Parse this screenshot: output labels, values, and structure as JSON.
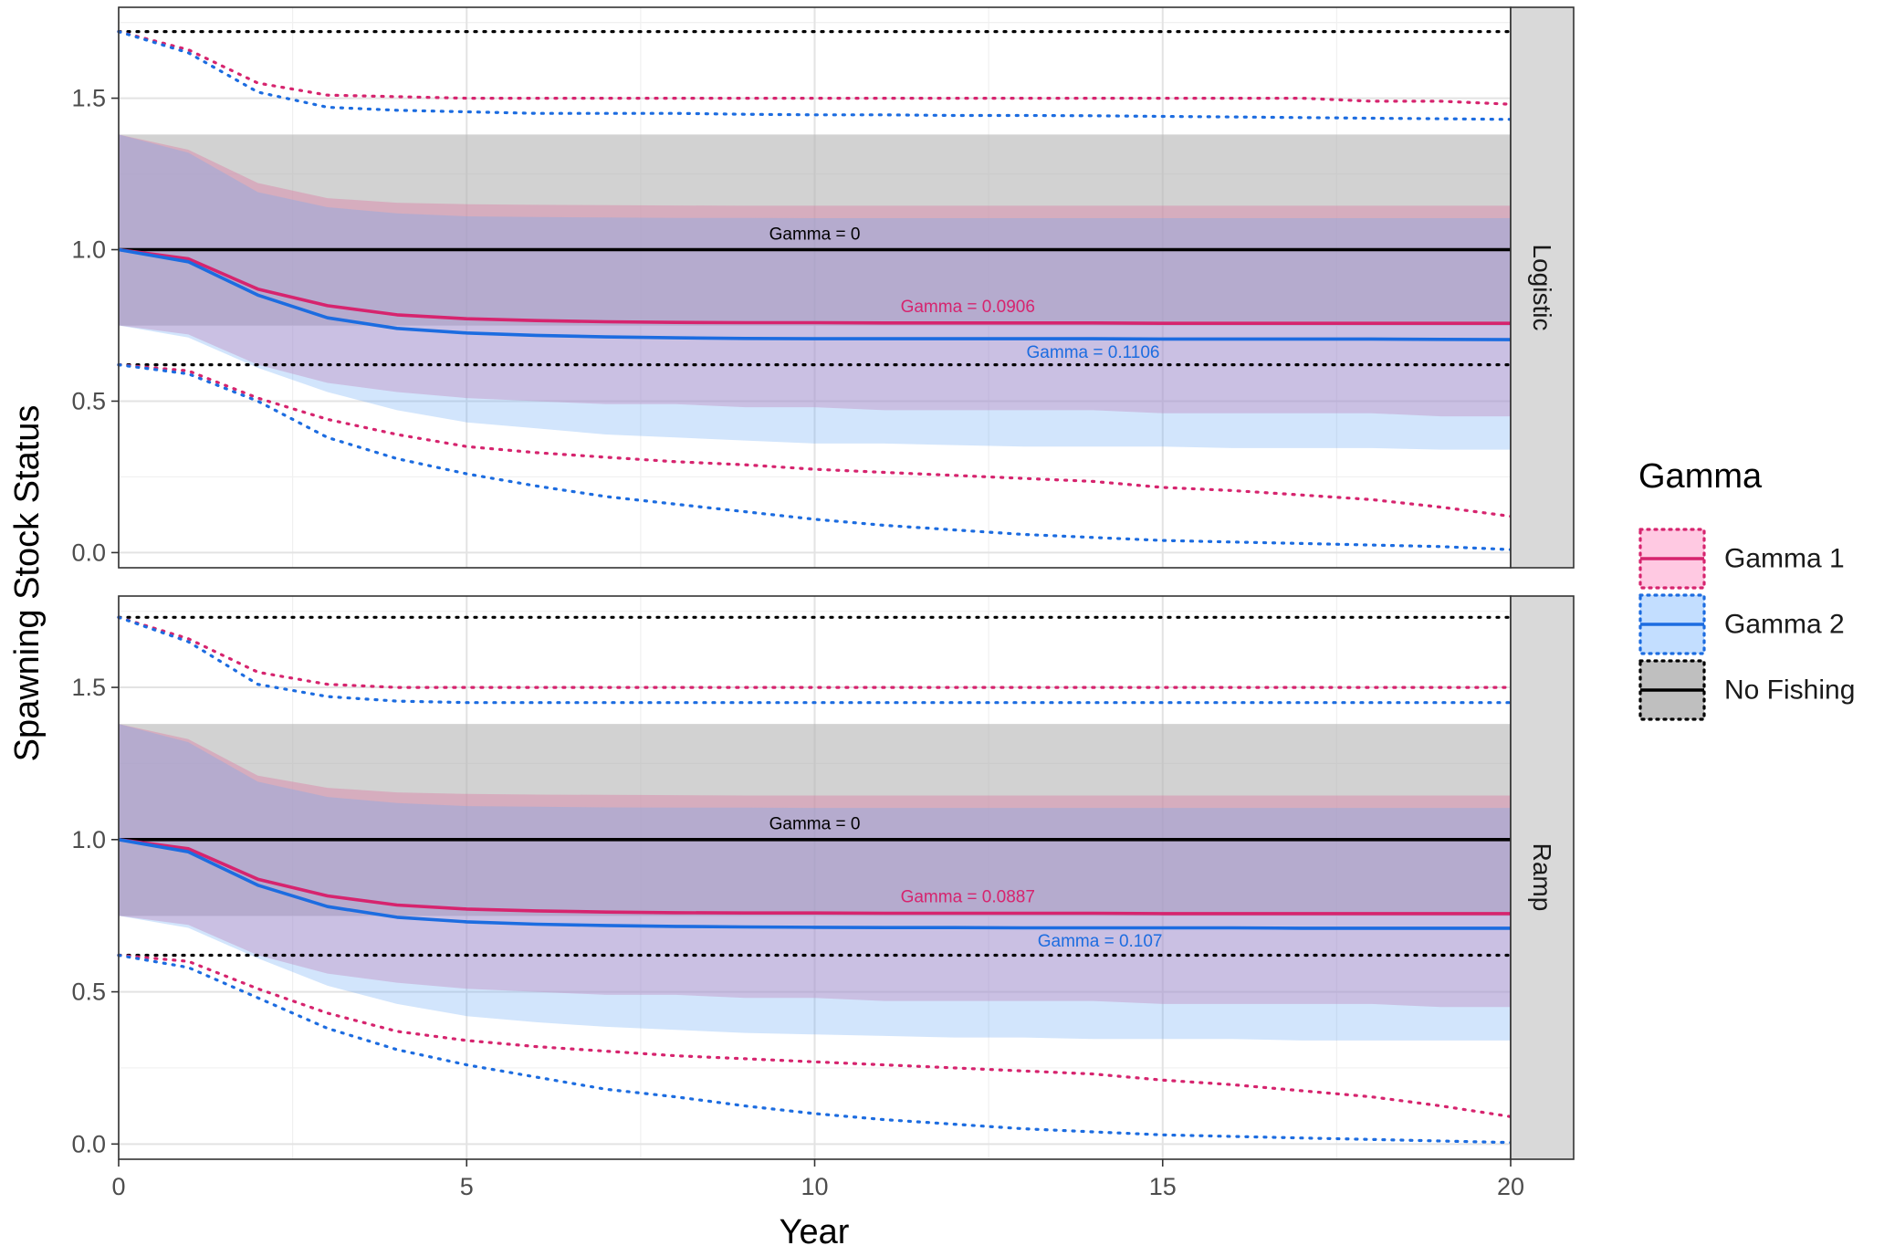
{
  "chart_data": {
    "type": "line",
    "xlabel": "Year",
    "ylabel": "Spawning Stock Status",
    "xlim": [
      0,
      20
    ],
    "ylim": [
      -0.05,
      1.8
    ],
    "x_ticks": [
      0,
      5,
      10,
      15,
      20
    ],
    "x_tick_labels": [
      "0",
      "5",
      "10",
      "15",
      "20"
    ],
    "y_ticks": [
      0,
      0.5,
      1.0,
      1.5
    ],
    "y_tick_labels": [
      "0.0",
      "0.5",
      "1.0",
      "1.5"
    ],
    "grid": true,
    "legend": {
      "title": "Gamma",
      "position": "right",
      "entries": [
        {
          "label": "Gamma 1",
          "line_color": "#d6246e",
          "fill_color": "#ffc0dd"
        },
        {
          "label": "Gamma 2",
          "line_color": "#1c6ce0",
          "fill_color": "#b8d8ff"
        },
        {
          "label": "No Fishing",
          "line_color": "#000000",
          "fill_color": "#b4b4b4"
        }
      ]
    },
    "colors": {
      "gamma1": "#d6246e",
      "gamma2": "#1c6ce0",
      "nofishing": "#000000"
    },
    "panels": [
      {
        "strip": "Logistic",
        "annotations": [
          {
            "text": "Gamma = 0",
            "x": 10.0,
            "y": 1.05,
            "color": "#000000"
          },
          {
            "text": "Gamma = 0.0906",
            "x": 12.2,
            "y": 0.81,
            "color": "#d6246e"
          },
          {
            "text": "Gamma = 0.1106",
            "x": 14.0,
            "y": 0.66,
            "color": "#1c6ce0"
          }
        ],
        "series": [
          {
            "name": "No Fishing",
            "x": [
              0,
              20
            ],
            "median": [
              1.0,
              1.0
            ],
            "band": {
              "lower": [
                0.75,
                0.75
              ],
              "upper": [
                1.38,
                1.38
              ]
            },
            "dotted_upper": [
              1.72,
              1.72
            ],
            "dotted_lower": [
              0.62,
              0.62
            ]
          },
          {
            "name": "Gamma 1",
            "x": [
              0,
              1,
              2,
              3,
              4,
              5,
              6,
              7,
              8,
              9,
              10,
              11,
              12,
              13,
              14,
              15,
              16,
              17,
              18,
              19,
              20
            ],
            "median": [
              1.0,
              0.97,
              0.87,
              0.815,
              0.785,
              0.772,
              0.766,
              0.762,
              0.76,
              0.759,
              0.759,
              0.758,
              0.758,
              0.758,
              0.758,
              0.757,
              0.757,
              0.757,
              0.757,
              0.757,
              0.757
            ],
            "band": {
              "lower": [
                0.75,
                0.72,
                0.62,
                0.56,
                0.53,
                0.51,
                0.5,
                0.49,
                0.49,
                0.48,
                0.48,
                0.47,
                0.47,
                0.47,
                0.47,
                0.46,
                0.46,
                0.46,
                0.46,
                0.45,
                0.45
              ],
              "upper": [
                1.38,
                1.33,
                1.22,
                1.17,
                1.155,
                1.15,
                1.148,
                1.147,
                1.146,
                1.145,
                1.145,
                1.145,
                1.145,
                1.145,
                1.145,
                1.145,
                1.145,
                1.145,
                1.145,
                1.145,
                1.145
              ]
            },
            "dotted_upper": [
              1.72,
              1.66,
              1.55,
              1.51,
              1.505,
              1.5,
              1.5,
              1.5,
              1.5,
              1.5,
              1.5,
              1.5,
              1.5,
              1.5,
              1.5,
              1.5,
              1.5,
              1.5,
              1.49,
              1.49,
              1.48
            ],
            "dotted_lower": [
              0.62,
              0.6,
              0.51,
              0.44,
              0.39,
              0.35,
              0.33,
              0.315,
              0.3,
              0.29,
              0.275,
              0.265,
              0.255,
              0.245,
              0.235,
              0.215,
              0.205,
              0.19,
              0.175,
              0.15,
              0.12
            ]
          },
          {
            "name": "Gamma 2",
            "x": [
              0,
              1,
              2,
              3,
              4,
              5,
              6,
              7,
              8,
              9,
              10,
              11,
              12,
              13,
              14,
              15,
              16,
              17,
              18,
              19,
              20
            ],
            "median": [
              1.0,
              0.96,
              0.85,
              0.775,
              0.74,
              0.725,
              0.717,
              0.712,
              0.709,
              0.707,
              0.706,
              0.706,
              0.706,
              0.706,
              0.706,
              0.705,
              0.705,
              0.705,
              0.705,
              0.704,
              0.703
            ],
            "band": {
              "lower": [
                0.75,
                0.71,
                0.61,
                0.53,
                0.47,
                0.43,
                0.41,
                0.39,
                0.38,
                0.37,
                0.36,
                0.36,
                0.355,
                0.35,
                0.35,
                0.35,
                0.345,
                0.345,
                0.345,
                0.34,
                0.34
              ],
              "upper": [
                1.38,
                1.32,
                1.19,
                1.14,
                1.12,
                1.11,
                1.108,
                1.106,
                1.105,
                1.105,
                1.104,
                1.104,
                1.104,
                1.104,
                1.104,
                1.104,
                1.104,
                1.104,
                1.104,
                1.104,
                1.104
              ]
            },
            "dotted_upper": [
              1.72,
              1.65,
              1.52,
              1.47,
              1.46,
              1.455,
              1.45,
              1.45,
              1.45,
              1.447,
              1.445,
              1.445,
              1.443,
              1.443,
              1.442,
              1.44,
              1.438,
              1.436,
              1.434,
              1.432,
              1.43
            ],
            "dotted_lower": [
              0.62,
              0.59,
              0.5,
              0.38,
              0.31,
              0.26,
              0.22,
              0.185,
              0.16,
              0.135,
              0.11,
              0.09,
              0.075,
              0.06,
              0.05,
              0.04,
              0.035,
              0.03,
              0.025,
              0.02,
              0.01
            ]
          }
        ]
      },
      {
        "strip": "Ramp",
        "annotations": [
          {
            "text": "Gamma = 0",
            "x": 10.0,
            "y": 1.05,
            "color": "#000000"
          },
          {
            "text": "Gamma = 0.0887",
            "x": 12.2,
            "y": 0.81,
            "color": "#d6246e"
          },
          {
            "text": "Gamma = 0.107",
            "x": 14.1,
            "y": 0.665,
            "color": "#1c6ce0"
          }
        ],
        "series": [
          {
            "name": "No Fishing",
            "x": [
              0,
              20
            ],
            "median": [
              1.0,
              1.0
            ],
            "band": {
              "lower": [
                0.75,
                0.75
              ],
              "upper": [
                1.38,
                1.38
              ]
            },
            "dotted_upper": [
              1.73,
              1.73
            ],
            "dotted_lower": [
              0.62,
              0.62
            ]
          },
          {
            "name": "Gamma 1",
            "x": [
              0,
              1,
              2,
              3,
              4,
              5,
              6,
              7,
              8,
              9,
              10,
              11,
              12,
              13,
              14,
              15,
              16,
              17,
              18,
              19,
              20
            ],
            "median": [
              1.0,
              0.97,
              0.87,
              0.815,
              0.785,
              0.772,
              0.766,
              0.762,
              0.76,
              0.759,
              0.759,
              0.758,
              0.758,
              0.758,
              0.758,
              0.757,
              0.757,
              0.757,
              0.757,
              0.757,
              0.757
            ],
            "band": {
              "lower": [
                0.75,
                0.72,
                0.62,
                0.56,
                0.53,
                0.51,
                0.5,
                0.49,
                0.49,
                0.48,
                0.48,
                0.47,
                0.47,
                0.47,
                0.47,
                0.46,
                0.46,
                0.46,
                0.46,
                0.45,
                0.45
              ],
              "upper": [
                1.38,
                1.33,
                1.21,
                1.17,
                1.155,
                1.15,
                1.148,
                1.147,
                1.146,
                1.145,
                1.145,
                1.145,
                1.145,
                1.145,
                1.145,
                1.145,
                1.145,
                1.145,
                1.145,
                1.145,
                1.145
              ]
            },
            "dotted_upper": [
              1.73,
              1.66,
              1.55,
              1.51,
              1.5,
              1.5,
              1.5,
              1.5,
              1.5,
              1.5,
              1.5,
              1.5,
              1.5,
              1.5,
              1.5,
              1.5,
              1.5,
              1.5,
              1.5,
              1.5,
              1.5
            ],
            "dotted_lower": [
              0.62,
              0.6,
              0.51,
              0.43,
              0.37,
              0.34,
              0.32,
              0.305,
              0.29,
              0.28,
              0.27,
              0.26,
              0.25,
              0.24,
              0.23,
              0.21,
              0.195,
              0.175,
              0.155,
              0.125,
              0.09
            ]
          },
          {
            "name": "Gamma 2",
            "x": [
              0,
              1,
              2,
              3,
              4,
              5,
              6,
              7,
              8,
              9,
              10,
              11,
              12,
              13,
              14,
              15,
              16,
              17,
              18,
              19,
              20
            ],
            "median": [
              1.0,
              0.96,
              0.85,
              0.78,
              0.745,
              0.73,
              0.722,
              0.718,
              0.715,
              0.713,
              0.712,
              0.711,
              0.711,
              0.71,
              0.71,
              0.71,
              0.71,
              0.709,
              0.709,
              0.709,
              0.709
            ],
            "band": {
              "lower": [
                0.75,
                0.71,
                0.61,
                0.52,
                0.46,
                0.42,
                0.4,
                0.385,
                0.375,
                0.365,
                0.36,
                0.355,
                0.35,
                0.35,
                0.345,
                0.345,
                0.345,
                0.34,
                0.34,
                0.34,
                0.34
              ],
              "upper": [
                1.38,
                1.32,
                1.19,
                1.14,
                1.12,
                1.11,
                1.108,
                1.106,
                1.105,
                1.105,
                1.104,
                1.104,
                1.104,
                1.104,
                1.104,
                1.104,
                1.104,
                1.104,
                1.104,
                1.104,
                1.104
              ]
            },
            "dotted_upper": [
              1.73,
              1.65,
              1.51,
              1.47,
              1.455,
              1.45,
              1.45,
              1.45,
              1.45,
              1.45,
              1.45,
              1.45,
              1.45,
              1.45,
              1.45,
              1.45,
              1.45,
              1.45,
              1.45,
              1.45,
              1.45
            ],
            "dotted_lower": [
              0.62,
              0.58,
              0.48,
              0.38,
              0.31,
              0.26,
              0.22,
              0.18,
              0.155,
              0.125,
              0.1,
              0.08,
              0.065,
              0.05,
              0.04,
              0.03,
              0.025,
              0.02,
              0.015,
              0.01,
              0.005
            ]
          }
        ]
      }
    ]
  }
}
